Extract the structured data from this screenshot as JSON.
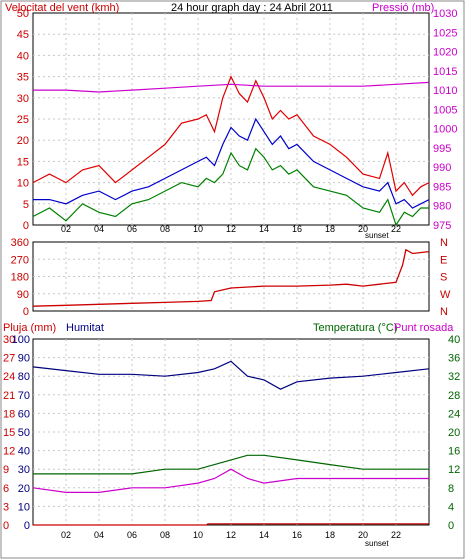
{
  "header": {
    "title": "24 hour graph day : 24 Abril 2011",
    "wind_label": "Velocitat del vent (kmh)",
    "pressure_label": "Pressió (mb)",
    "rain_label": "Pluja (mm)",
    "humidity_label": "Humitat",
    "temp_label": "Temperatura (°C)",
    "dew_label": "Punt rosada",
    "sunset_label": "sunset",
    "sunset_label_2": "sunset"
  },
  "colors": {
    "wind": "#e00000",
    "gust": "#e00000",
    "avg_wind": "#0000cc",
    "speed": "#008000",
    "pressure": "#cc00cc",
    "direction": "#cc0000",
    "humidity": "#000080",
    "temperature": "#006600",
    "dew": "#cc00cc",
    "rain": "#cc0000"
  },
  "chart_data": [
    {
      "type": "line",
      "title": "24 hour graph day : 24 Abril 2011",
      "ylabel": "Velocitat del vent (kmh)",
      "y2label": "Pressió (mb)",
      "x_ticks": [
        "02",
        "04",
        "06",
        "08",
        "10",
        "12",
        "14",
        "16",
        "18",
        "20",
        "22"
      ],
      "xlim": [
        0,
        24
      ],
      "ylim": [
        0,
        50
      ],
      "y_ticks": [
        0,
        5,
        10,
        15,
        20,
        25,
        30,
        35,
        40,
        45,
        50
      ],
      "y2lim": [
        975,
        1030
      ],
      "y2_ticks": [
        975,
        980,
        985,
        990,
        995,
        1000,
        1005,
        1010,
        1015,
        1020,
        1025,
        1030
      ],
      "grid": true,
      "series": [
        {
          "name": "gust",
          "axis": "left",
          "x": [
            0,
            1,
            2,
            3,
            4,
            5,
            6,
            7,
            8,
            9,
            10,
            10.5,
            11,
            11.5,
            12,
            12.5,
            13,
            13.5,
            14,
            14.5,
            15,
            15.5,
            16,
            17,
            18,
            19,
            20,
            21,
            21.5,
            22,
            22.5,
            23,
            23.5,
            24
          ],
          "values": [
            10,
            12,
            10,
            13,
            14,
            10,
            13,
            16,
            19,
            24,
            25,
            26,
            22,
            30,
            35,
            31,
            29,
            34,
            30,
            25,
            27,
            25,
            26,
            21,
            19,
            16,
            12,
            11,
            17,
            8,
            10,
            7,
            9,
            10
          ]
        },
        {
          "name": "wind_avg",
          "axis": "left",
          "x": [
            0,
            1,
            2,
            3,
            4,
            5,
            6,
            7,
            8,
            9,
            10,
            10.5,
            11,
            11.5,
            12,
            12.5,
            13,
            13.5,
            14,
            14.5,
            15,
            15.5,
            16,
            17,
            18,
            19,
            20,
            21,
            21.5,
            22,
            22.5,
            23,
            23.5,
            24
          ],
          "values": [
            6,
            6,
            5,
            7,
            8,
            6,
            8,
            9,
            11,
            13,
            15,
            16,
            14,
            19,
            23,
            21,
            20,
            25,
            22,
            19,
            21,
            18,
            19,
            15,
            13,
            11,
            9,
            8,
            10,
            5,
            6,
            4,
            5,
            6
          ]
        },
        {
          "name": "wind_speed",
          "axis": "left",
          "x": [
            0,
            1,
            2,
            3,
            4,
            5,
            6,
            7,
            8,
            9,
            10,
            10.5,
            11,
            11.5,
            12,
            12.5,
            13,
            13.5,
            14,
            14.5,
            15,
            15.5,
            16,
            17,
            18,
            19,
            20,
            21,
            21.5,
            22,
            22.5,
            23,
            23.5,
            24
          ],
          "values": [
            2,
            4,
            1,
            5,
            3,
            2,
            5,
            6,
            8,
            10,
            9,
            11,
            10,
            12,
            17,
            14,
            13,
            18,
            16,
            13,
            14,
            12,
            13,
            9,
            8,
            7,
            4,
            3,
            6,
            0,
            3,
            2,
            4,
            4
          ]
        },
        {
          "name": "pressure",
          "axis": "right",
          "x": [
            0,
            2,
            4,
            6,
            8,
            10,
            12,
            14,
            16,
            18,
            20,
            22,
            24
          ],
          "values": [
            1010,
            1010,
            1009.5,
            1010,
            1010.5,
            1011,
            1011.5,
            1011,
            1011,
            1011,
            1011,
            1011.5,
            1012
          ]
        }
      ]
    },
    {
      "type": "line",
      "title": "",
      "y_ticks": [
        0,
        90,
        180,
        270,
        360
      ],
      "ylim": [
        0,
        360
      ],
      "y2_labels": [
        "N",
        "W",
        "S",
        "E",
        "N"
      ],
      "xlim": [
        0,
        24
      ],
      "grid": true,
      "series": [
        {
          "name": "direction",
          "x": [
            0,
            2,
            4,
            6,
            8,
            10,
            10.8,
            11,
            12,
            14,
            16,
            18,
            19,
            20,
            21,
            22,
            22.4,
            22.6,
            23,
            24
          ],
          "values": [
            25,
            30,
            35,
            40,
            45,
            50,
            55,
            100,
            120,
            130,
            130,
            135,
            140,
            130,
            140,
            150,
            240,
            320,
            300,
            310
          ]
        }
      ]
    },
    {
      "type": "line",
      "title": "",
      "x_ticks": [
        "02",
        "04",
        "06",
        "08",
        "10",
        "12",
        "14",
        "16",
        "18",
        "20",
        "22"
      ],
      "xlim": [
        0,
        24
      ],
      "y_rain_ticks": [
        0,
        3,
        6,
        9,
        12,
        15,
        18,
        21,
        24,
        27,
        30
      ],
      "y_hum_ticks": [
        0,
        10,
        20,
        30,
        40,
        50,
        60,
        70,
        80,
        90,
        100
      ],
      "y_temp_ticks": [
        0,
        4,
        8,
        12,
        16,
        20,
        24,
        28,
        32,
        36,
        40
      ],
      "grid": true,
      "series": [
        {
          "name": "humidity",
          "axis": "humidity",
          "x": [
            0,
            2,
            4,
            6,
            8,
            10,
            11,
            12,
            13,
            14,
            15,
            16,
            18,
            20,
            22,
            24
          ],
          "values": [
            85,
            83,
            81,
            81,
            80,
            82,
            84,
            88,
            80,
            78,
            73,
            77,
            79,
            80,
            82,
            84
          ]
        },
        {
          "name": "temperature",
          "axis": "temperature",
          "x": [
            0,
            2,
            4,
            6,
            8,
            10,
            11,
            12,
            13,
            14,
            16,
            18,
            20,
            22,
            24
          ],
          "values": [
            11,
            11,
            11,
            11,
            12,
            12,
            13,
            14,
            15,
            15,
            14,
            13,
            12,
            12,
            12
          ]
        },
        {
          "name": "dew",
          "axis": "temperature",
          "x": [
            0,
            2,
            4,
            6,
            8,
            10,
            11,
            12,
            13,
            14,
            16,
            18,
            20,
            22,
            24
          ],
          "values": [
            8,
            7,
            7,
            8,
            8,
            9,
            10,
            12,
            10,
            9,
            10,
            10,
            10,
            10,
            10
          ]
        },
        {
          "name": "rain",
          "axis": "rain",
          "x": [
            0,
            10.5,
            10.6,
            24
          ],
          "values": [
            0,
            0,
            0.2,
            0.2
          ]
        }
      ]
    }
  ]
}
